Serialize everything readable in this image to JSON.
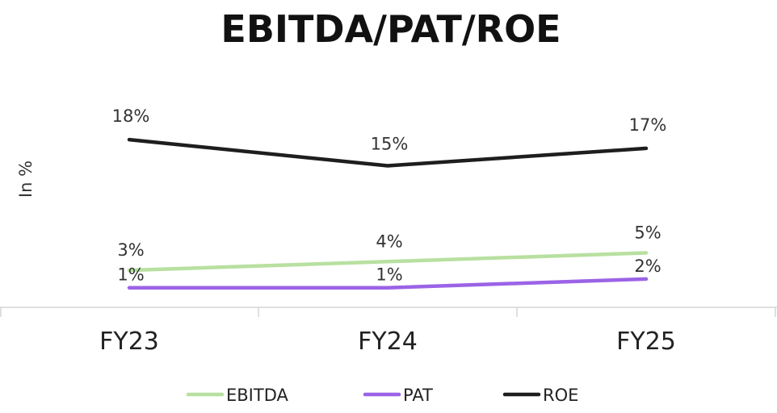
{
  "chart_data": {
    "type": "line",
    "title": "EBITDA/PAT/ROE",
    "ylabel": "In %",
    "xlabel": "",
    "categories": [
      "FY23",
      "FY24",
      "FY25"
    ],
    "series": [
      {
        "name": "EBITDA",
        "color": "#b8e0a0",
        "values": [
          3,
          4,
          5
        ],
        "labels": [
          "3%",
          "4%",
          "5%"
        ]
      },
      {
        "name": "PAT",
        "color": "#9b63e6",
        "values": [
          1,
          1,
          2
        ],
        "labels": [
          "1%",
          "1%",
          "2%"
        ]
      },
      {
        "name": "ROE",
        "color": "#1e1e1e",
        "values": [
          18,
          15,
          17
        ],
        "labels": [
          "18%",
          "15%",
          "17%"
        ]
      }
    ],
    "legend": "bottom",
    "grid": false
  }
}
